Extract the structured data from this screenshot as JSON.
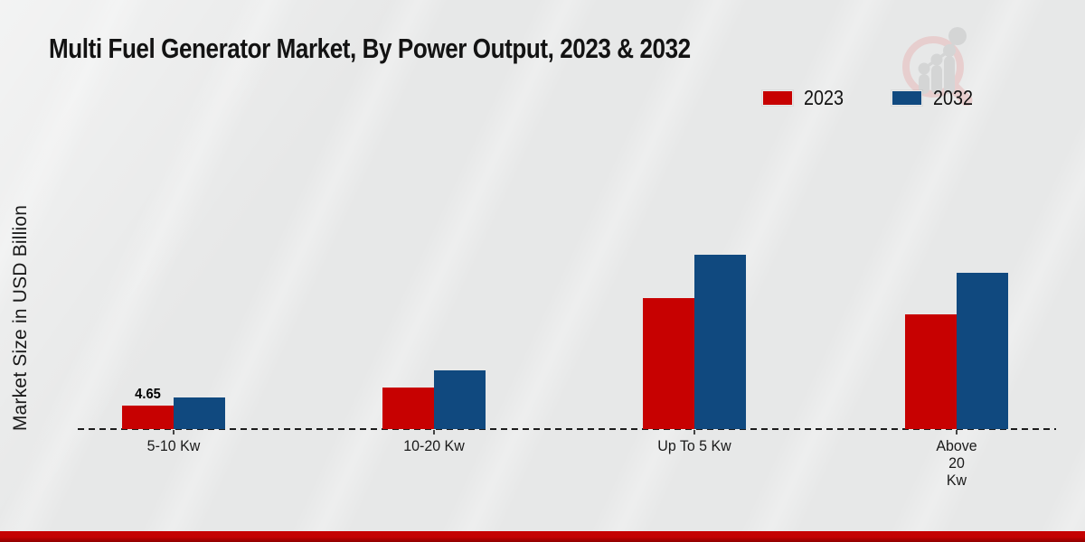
{
  "chart_data": {
    "type": "bar",
    "title": "Multi Fuel Generator Market, By Power Output, 2023 & 2032",
    "ylabel": "Market Size in USD Billion",
    "xlabel": "",
    "categories": [
      "5-10 Kw",
      "10-20 Kw",
      "Up To 5 Kw",
      "Above 20 Kw"
    ],
    "category_display": [
      "5-10 Kw",
      "10-20 Kw",
      "Up To 5 Kw",
      "Above\n20\nKw"
    ],
    "series": [
      {
        "name": "2023",
        "color": "#c70101",
        "values": [
          4.65,
          8.2,
          25.9,
          22.7
        ]
      },
      {
        "name": "2032",
        "color": "#10497f",
        "values": [
          6.3,
          11.6,
          34.5,
          30.9
        ]
      }
    ],
    "value_labels": [
      {
        "series_index": 0,
        "category_index": 0,
        "text": "4.65"
      }
    ],
    "ylim": [
      0,
      40
    ],
    "grid": false,
    "legend_position": "top-right",
    "baseline_style": "dashed"
  },
  "watermark": {
    "name": "magnifier-growth-chart-logo"
  },
  "footer": {
    "accent_color": "#c30202"
  }
}
